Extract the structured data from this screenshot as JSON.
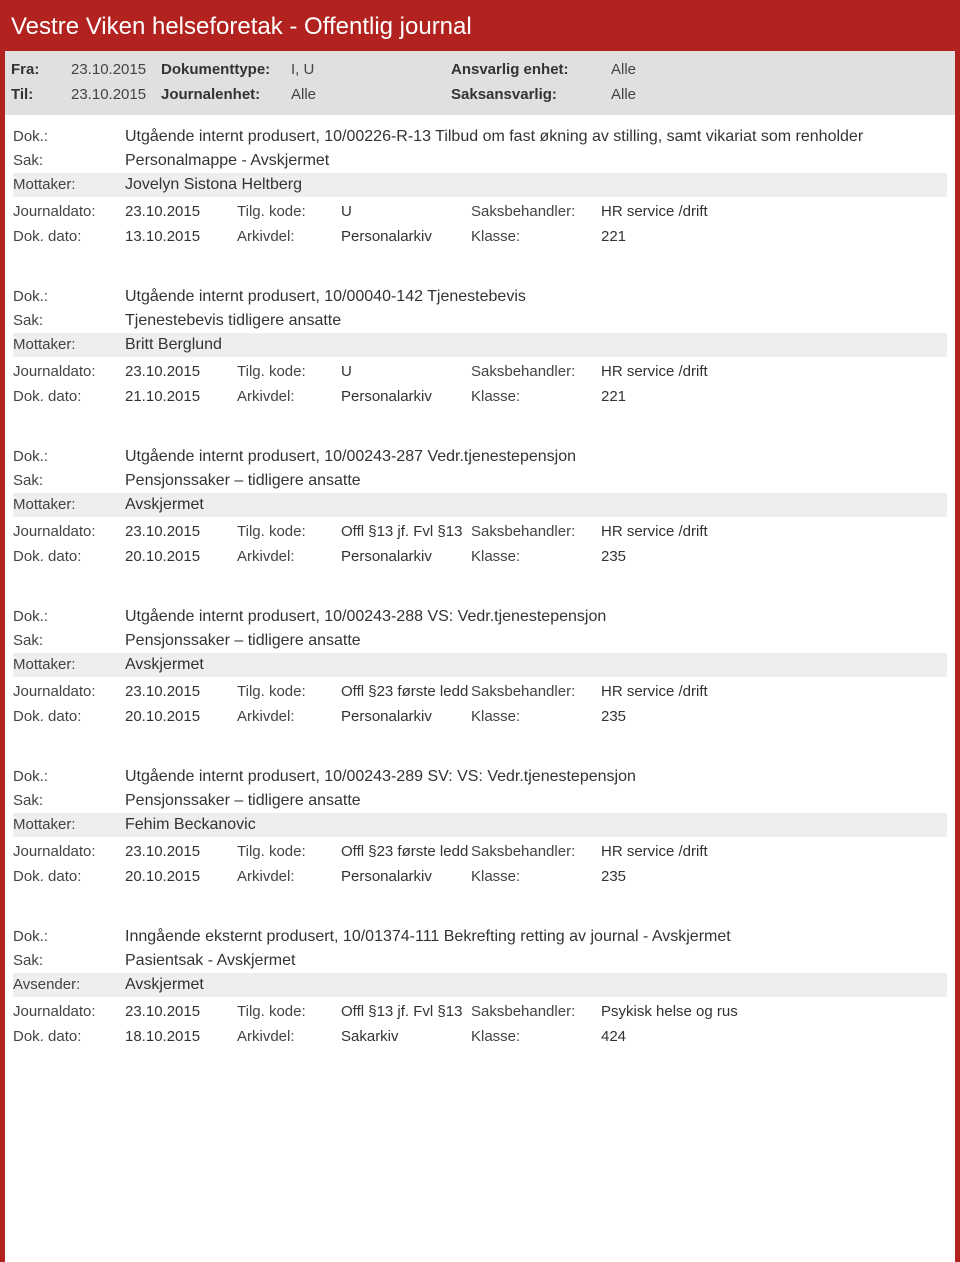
{
  "title": "Vestre Viken helseforetak - Offentlig journal",
  "filter": {
    "fra_label": "Fra:",
    "fra_value": "23.10.2015",
    "til_label": "Til:",
    "til_value": "23.10.2015",
    "doktype_label": "Dokumenttype:",
    "doktype_value": "I, U",
    "journalenhet_label": "Journalenhet:",
    "journalenhet_value": "Alle",
    "ansvarlig_label": "Ansvarlig enhet:",
    "ansvarlig_value": "Alle",
    "saksansvarlig_label": "Saksansvarlig:",
    "saksansvarlig_value": "Alle"
  },
  "labels": {
    "dok": "Dok.:",
    "sak": "Sak:",
    "mottaker": "Mottaker:",
    "avsender": "Avsender:",
    "journaldato": "Journaldato:",
    "dokdato": "Dok. dato:",
    "tilgkode": "Tilg. kode:",
    "arkivdel": "Arkivdel:",
    "saksbehandler": "Saksbehandler:",
    "klasse": "Klasse:"
  },
  "entries": [
    {
      "dok": "Utgående internt produsert, 10/00226-R-13 Tilbud om fast økning av stilling, samt vikariat som renholder",
      "sak": "Personalmappe - Avskjermet",
      "party_label": "Mottaker:",
      "party_value": "Jovelyn Sistona Heltberg",
      "journaldato": "23.10.2015",
      "dokdato": "13.10.2015",
      "tilgkode": "U",
      "arkivdel": "Personalarkiv",
      "saksbehandler": "HR service /drift",
      "klasse": "221"
    },
    {
      "dok": "Utgående internt produsert, 10/00040-142 Tjenestebevis",
      "sak": "Tjenestebevis tidligere ansatte",
      "party_label": "Mottaker:",
      "party_value": "Britt Berglund",
      "journaldato": "23.10.2015",
      "dokdato": "21.10.2015",
      "tilgkode": "U",
      "arkivdel": "Personalarkiv",
      "saksbehandler": "HR service /drift",
      "klasse": "221"
    },
    {
      "dok": "Utgående internt produsert, 10/00243-287 Vedr.tjenestepensjon",
      "sak": "Pensjonssaker – tidligere ansatte",
      "party_label": "Mottaker:",
      "party_value": "Avskjermet",
      "journaldato": "23.10.2015",
      "dokdato": "20.10.2015",
      "tilgkode": "Offl §13 jf. Fvl §13",
      "arkivdel": "Personalarkiv",
      "saksbehandler": "HR service /drift",
      "klasse": "235"
    },
    {
      "dok": "Utgående internt produsert, 10/00243-288 VS: Vedr.tjenestepensjon",
      "sak": "Pensjonssaker – tidligere ansatte",
      "party_label": "Mottaker:",
      "party_value": "Avskjermet",
      "journaldato": "23.10.2015",
      "dokdato": "20.10.2015",
      "tilgkode": "Offl §23 første ledd",
      "arkivdel": "Personalarkiv",
      "saksbehandler": "HR service /drift",
      "klasse": "235"
    },
    {
      "dok": "Utgående internt produsert, 10/00243-289 SV: VS: Vedr.tjenestepensjon",
      "sak": "Pensjonssaker – tidligere ansatte",
      "party_label": "Mottaker:",
      "party_value": "Fehim Beckanovic",
      "journaldato": "23.10.2015",
      "dokdato": "20.10.2015",
      "tilgkode": "Offl §23 første ledd",
      "arkivdel": "Personalarkiv",
      "saksbehandler": "HR service /drift",
      "klasse": "235"
    },
    {
      "dok": "Inngående eksternt produsert, 10/01374-111 Bekrefting retting av journal - Avskjermet",
      "sak": "Pasientsak - Avskjermet",
      "party_label": "Avsender:",
      "party_value": "Avskjermet",
      "journaldato": "23.10.2015",
      "dokdato": "18.10.2015",
      "tilgkode": "Offl §13 jf. Fvl §13",
      "arkivdel": "Sakarkiv",
      "saksbehandler": "Psykisk helse og rus",
      "klasse": "424"
    }
  ]
}
